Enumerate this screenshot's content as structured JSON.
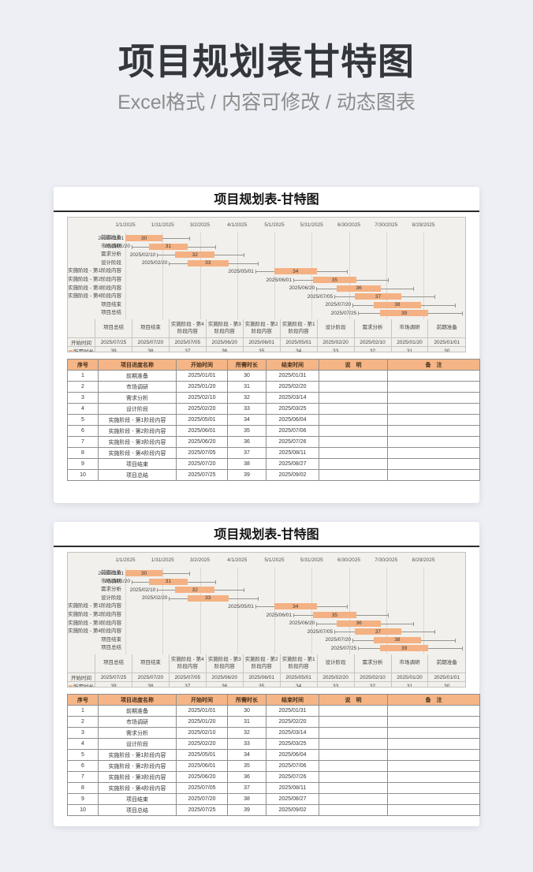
{
  "page": {
    "title": "项目规划表甘特图",
    "subtitle": "Excel格式 / 内容可修改 / 动态图表"
  },
  "colors": {
    "page_bg": "#edeff4",
    "hero_title": "#33373d",
    "hero_subtitle": "#8c8c8c",
    "bar_accent": "#f4b183",
    "table_header_bg": "#f5b586",
    "table_header_text": "#47301a"
  },
  "sheet": {
    "title": "项目规划表-甘特图",
    "table_headers": [
      "序号",
      "项目进度名称",
      "开始时间",
      "所需时长",
      "结束时间",
      "说　明",
      "备　注"
    ],
    "tasks": [
      {
        "no": "1",
        "name": "前期准备",
        "start": "2025/01/01",
        "days": 30,
        "end": "2025/01/31",
        "note": "",
        "remark": ""
      },
      {
        "no": "2",
        "name": "市场调研",
        "start": "2025/01/20",
        "days": 31,
        "end": "2025/02/20",
        "note": "",
        "remark": ""
      },
      {
        "no": "3",
        "name": "需求分析",
        "start": "2025/02/10",
        "days": 32,
        "end": "2025/03/14",
        "note": "",
        "remark": ""
      },
      {
        "no": "4",
        "name": "设计阶段",
        "start": "2025/02/20",
        "days": 33,
        "end": "2025/03/25",
        "note": "",
        "remark": ""
      },
      {
        "no": "5",
        "name": "实施阶段 - 第1阶段内容",
        "start": "2025/05/01",
        "days": 34,
        "end": "2025/06/04",
        "note": "",
        "remark": ""
      },
      {
        "no": "6",
        "name": "实施阶段 - 第2阶段内容",
        "start": "2025/06/01",
        "days": 35,
        "end": "2025/07/06",
        "note": "",
        "remark": ""
      },
      {
        "no": "7",
        "name": "实施阶段 - 第3阶段内容",
        "start": "2025/06/20",
        "days": 36,
        "end": "2025/07/26",
        "note": "",
        "remark": ""
      },
      {
        "no": "8",
        "name": "实施阶段 - 第4阶段内容",
        "start": "2025/07/05",
        "days": 37,
        "end": "2025/08/11",
        "note": "",
        "remark": ""
      },
      {
        "no": "9",
        "name": "项目结束",
        "start": "2025/07/20",
        "days": 38,
        "end": "2025/08/27",
        "note": "",
        "remark": ""
      },
      {
        "no": "10",
        "name": "项目总结",
        "start": "2025/07/25",
        "days": 39,
        "end": "2025/09/02",
        "note": "",
        "remark": ""
      }
    ]
  },
  "chart_data": {
    "type": "bar",
    "subtype": "horizontal-gantt",
    "title": "项目规划表-甘特图",
    "categories": [
      "前期准备",
      "市场调研",
      "需求分析",
      "设计阶段",
      "实施阶段 - 第1阶段内容",
      "实施阶段 - 第2阶段内容",
      "实施阶段 - 第3阶段内容",
      "实施阶段 - 第4阶段内容",
      "项目结束",
      "项目总结"
    ],
    "series": [
      {
        "name": "开始时间",
        "values": [
          "2025/01/01",
          "2025/01/20",
          "2025/02/10",
          "2025/02/20",
          "2025/05/01",
          "2025/06/01",
          "2025/06/20",
          "2025/07/05",
          "2025/07/20",
          "2025/07/25"
        ]
      },
      {
        "name": "所需时长",
        "values": [
          30,
          31,
          32,
          33,
          34,
          35,
          36,
          37,
          38,
          39
        ]
      }
    ],
    "end_dates": [
      "2025/01/31",
      "2025/02/20",
      "2025/03/14",
      "2025/03/25",
      "2025/06/04",
      "2025/07/06",
      "2025/07/26",
      "2025/08/11",
      "2025/08/27",
      "2025/09/02"
    ],
    "x_tick_labels": [
      "1/1/2025",
      "1/31/2025",
      "3/2/2025",
      "4/1/2025",
      "5/1/2025",
      "5/31/2025",
      "6/30/2025",
      "7/30/2025",
      "8/29/2025"
    ],
    "x_tick_interval_days": 30,
    "x_origin_date": "2025/01/01",
    "bar_color": "#f4b183",
    "grid": true,
    "legend_position": "bottom-data-table"
  }
}
